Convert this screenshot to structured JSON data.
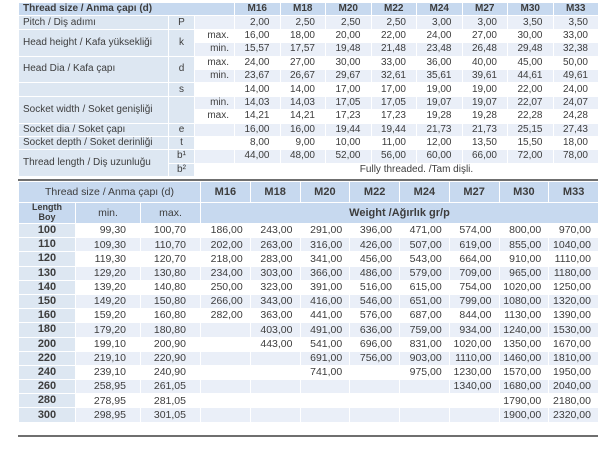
{
  "colors": {
    "header_blue": "#c7d9ef",
    "label_blue": "#dde7f2",
    "row_stripe": "#eaeff8",
    "rule_dark": "#6f6f6f",
    "text_dark": "#3d3d3d"
  },
  "spec_table": {
    "header_label": "Thread size / Anma çapı (d)",
    "sizes": [
      "M16",
      "M18",
      "M20",
      "M22",
      "M24",
      "M27",
      "M30",
      "M33"
    ],
    "groups": [
      {
        "label": "Pitch / Diş adımı",
        "symbol": "P",
        "rows": [
          {
            "sub": "",
            "values": [
              "2,00",
              "2,50",
              "2,50",
              "2,50",
              "3,00",
              "3,00",
              "3,50",
              "3,50"
            ]
          }
        ]
      },
      {
        "label": "Head height / Kafa yüksekliği",
        "symbol": "k",
        "rows": [
          {
            "sub": "max.",
            "values": [
              "16,00",
              "18,00",
              "20,00",
              "22,00",
              "24,00",
              "27,00",
              "30,00",
              "33,00"
            ]
          },
          {
            "sub": "min.",
            "values": [
              "15,57",
              "17,57",
              "19,48",
              "21,48",
              "23,48",
              "26,48",
              "29,48",
              "32,38"
            ]
          }
        ]
      },
      {
        "label": "Head Dia / Kafa çapı",
        "symbol": "d",
        "rows": [
          {
            "sub": "max.",
            "values": [
              "24,00",
              "27,00",
              "30,00",
              "33,00",
              "36,00",
              "40,00",
              "45,00",
              "50,00"
            ]
          },
          {
            "sub": "min.",
            "values": [
              "23,67",
              "26,67",
              "29,67",
              "32,61",
              "35,61",
              "39,61",
              "44,61",
              "49,61"
            ]
          }
        ]
      },
      {
        "label": "",
        "symbol": "s",
        "rows": [
          {
            "sub": "",
            "values": [
              "14,00",
              "14,00",
              "17,00",
              "17,00",
              "19,00",
              "19,00",
              "22,00",
              "24,00"
            ]
          }
        ]
      },
      {
        "label": "Socket width / Soket genişliği",
        "symbol": "",
        "rows": [
          {
            "sub": "min.",
            "values": [
              "14,03",
              "14,03",
              "17,05",
              "17,05",
              "19,07",
              "19,07",
              "22,07",
              "24,07"
            ]
          },
          {
            "sub": "max.",
            "values": [
              "14,21",
              "14,21",
              "17,23",
              "17,23",
              "19,28",
              "19,28",
              "22,28",
              "24,28"
            ]
          }
        ]
      },
      {
        "label": "Socket dia / Soket çapı",
        "symbol": "e",
        "rows": [
          {
            "sub": "",
            "values": [
              "16,00",
              "16,00",
              "19,44",
              "19,44",
              "21,73",
              "21,73",
              "25,15",
              "27,43"
            ]
          }
        ]
      },
      {
        "label": "Socket depth / Soket derinliği",
        "symbol": "t",
        "rows": [
          {
            "sub": "",
            "values": [
              "8,00",
              "9,00",
              "10,00",
              "11,00",
              "12,00",
              "13,50",
              "15,50",
              "18,00"
            ]
          }
        ]
      },
      {
        "label": "Thread length / Diş uzunluğu",
        "rows": [
          {
            "symbol": "b¹",
            "sub": "",
            "values": [
              "44,00",
              "48,00",
              "52,00",
              "56,00",
              "60,00",
              "66,00",
              "72,00",
              "78,00"
            ]
          },
          {
            "symbol": "b²",
            "sub": "",
            "span": "Fully threaded. /Tam dişli."
          }
        ]
      }
    ]
  },
  "weight_table": {
    "header_label": "Thread size / Anma çapı (d)",
    "sizes": [
      "M16",
      "M18",
      "M20",
      "M22",
      "M24",
      "M27",
      "M30",
      "M33"
    ],
    "length_header": [
      "Length",
      "Boy"
    ],
    "min_header": "min.",
    "max_header": "max.",
    "weight_header": "Weight /Ağırlık gr/p",
    "rows": [
      {
        "length": "100",
        "min": "99,30",
        "max": "100,70",
        "weights": [
          "186,00",
          "243,00",
          "291,00",
          "396,00",
          "471,00",
          "574,00",
          "800,00",
          "970,00"
        ]
      },
      {
        "length": "110",
        "min": "109,30",
        "max": "110,70",
        "weights": [
          "202,00",
          "263,00",
          "316,00",
          "426,00",
          "507,00",
          "619,00",
          "855,00",
          "1040,00"
        ]
      },
      {
        "length": "120",
        "min": "119,30",
        "max": "120,70",
        "weights": [
          "218,00",
          "283,00",
          "341,00",
          "456,00",
          "543,00",
          "664,00",
          "910,00",
          "1110,00"
        ]
      },
      {
        "length": "130",
        "min": "129,20",
        "max": "130,80",
        "weights": [
          "234,00",
          "303,00",
          "366,00",
          "486,00",
          "579,00",
          "709,00",
          "965,00",
          "1180,00"
        ]
      },
      {
        "length": "140",
        "min": "139,20",
        "max": "140,80",
        "weights": [
          "250,00",
          "323,00",
          "391,00",
          "516,00",
          "615,00",
          "754,00",
          "1020,00",
          "1250,00"
        ]
      },
      {
        "length": "150",
        "min": "149,20",
        "max": "150,80",
        "weights": [
          "266,00",
          "343,00",
          "416,00",
          "546,00",
          "651,00",
          "799,00",
          "1080,00",
          "1320,00"
        ]
      },
      {
        "length": "160",
        "min": "159,20",
        "max": "160,80",
        "weights": [
          "282,00",
          "363,00",
          "441,00",
          "576,00",
          "687,00",
          "844,00",
          "1130,00",
          "1390,00"
        ]
      },
      {
        "length": "180",
        "min": "179,20",
        "max": "180,80",
        "weights": [
          null,
          "403,00",
          "491,00",
          "636,00",
          "759,00",
          "934,00",
          "1240,00",
          "1530,00"
        ]
      },
      {
        "length": "200",
        "min": "199,10",
        "max": "200,90",
        "weights": [
          null,
          "443,00",
          "541,00",
          "696,00",
          "831,00",
          "1020,00",
          "1350,00",
          "1670,00"
        ]
      },
      {
        "length": "220",
        "min": "219,10",
        "max": "220,90",
        "weights": [
          null,
          null,
          "691,00",
          "756,00",
          "903,00",
          "1110,00",
          "1460,00",
          "1810,00"
        ]
      },
      {
        "length": "240",
        "min": "239,10",
        "max": "240,90",
        "weights": [
          null,
          null,
          "741,00",
          null,
          "975,00",
          "1230,00",
          "1570,00",
          "1950,00"
        ]
      },
      {
        "length": "260",
        "min": "258,95",
        "max": "261,05",
        "weights": [
          null,
          null,
          null,
          null,
          null,
          "1340,00",
          "1680,00",
          "2040,00"
        ]
      },
      {
        "length": "280",
        "min": "278,95",
        "max": "281,05",
        "weights": [
          null,
          null,
          null,
          null,
          null,
          null,
          "1790,00",
          "2180,00"
        ]
      },
      {
        "length": "300",
        "min": "298,95",
        "max": "301,05",
        "weights": [
          null,
          null,
          null,
          null,
          null,
          null,
          "1900,00",
          "2320,00"
        ]
      }
    ]
  }
}
